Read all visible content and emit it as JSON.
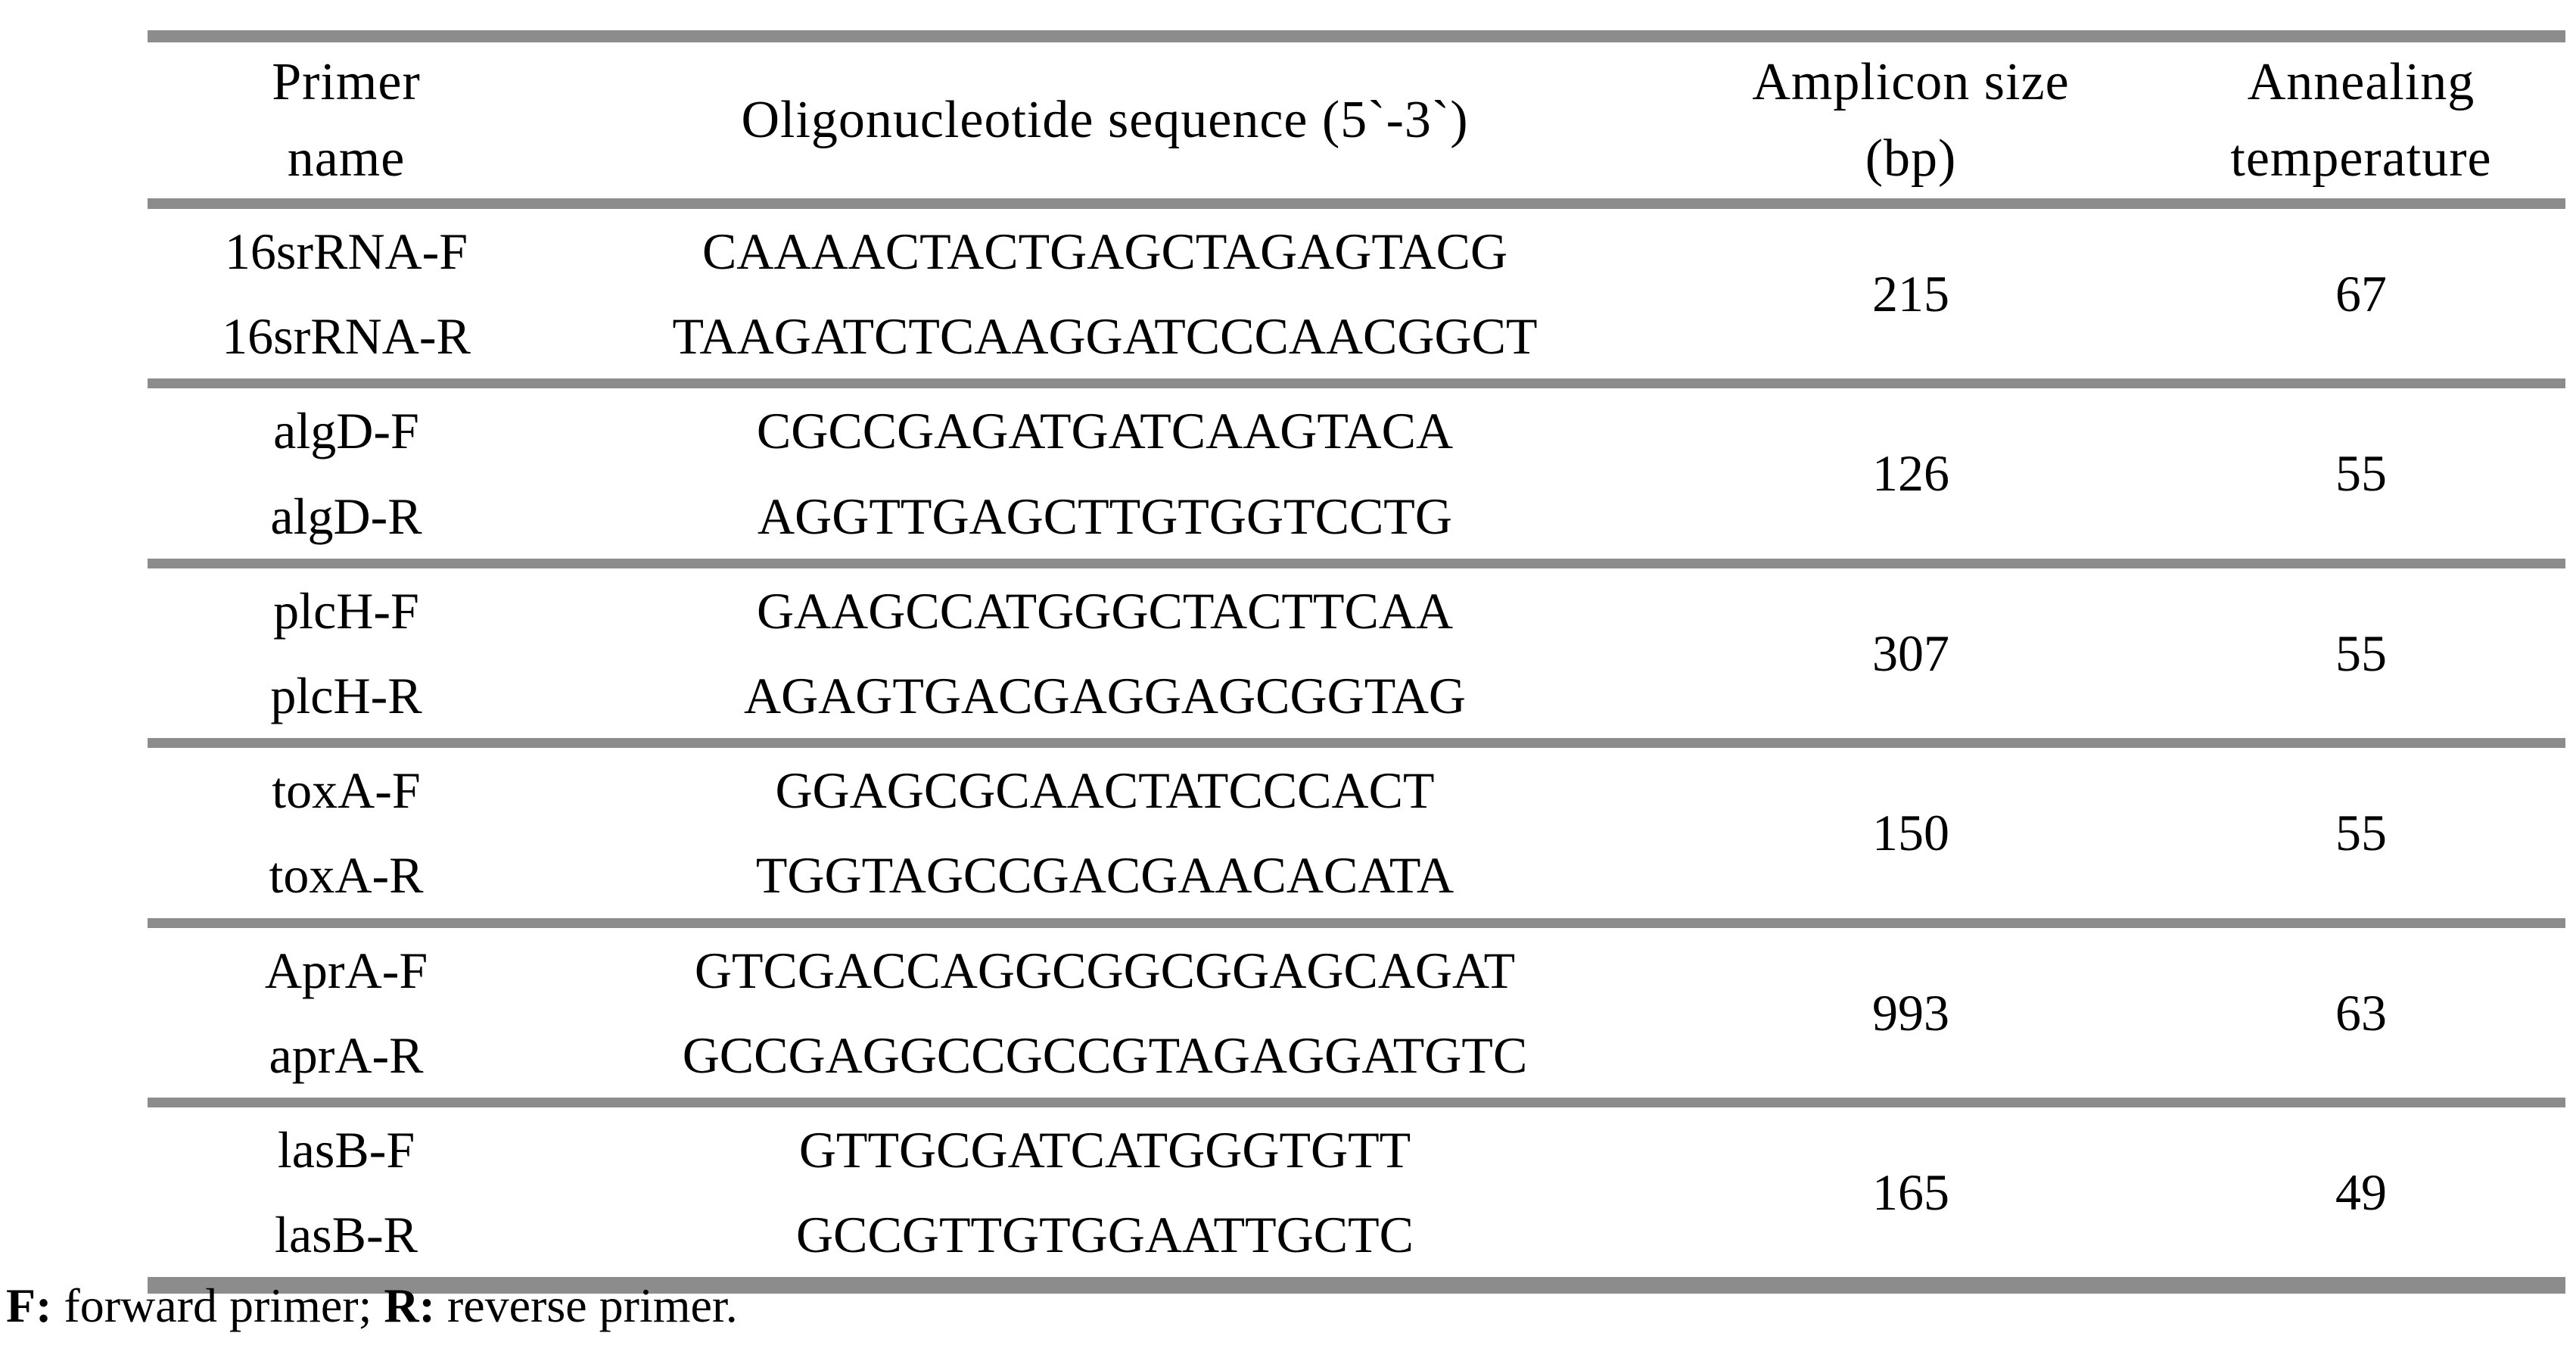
{
  "colors": {
    "border_gray": "#8c8c8c",
    "text": "#000000",
    "background": "#ffffff"
  },
  "header": {
    "primer_name_line1": "Primer",
    "primer_name_line2": "name",
    "sequence": "Oligonucleotide sequence (5`-3`)",
    "amplicon_line1": "Amplicon size",
    "amplicon_line2": "(bp)",
    "annealing_line1": "Annealing",
    "annealing_line2": "temperature"
  },
  "rows": [
    {
      "forward_name": "16srRNA-F",
      "reverse_name": "16srRNA-R",
      "forward_seq": "CAAAACTACTGAGCTAGAGTACG",
      "reverse_seq": "TAAGATCTCAAGGATCCCAACGGCT",
      "amplicon_bp": "215",
      "annealing_temp": "67"
    },
    {
      "forward_name": "algD-F",
      "reverse_name": "algD-R",
      "forward_seq": "CGCCGAGATGATCAAGTACA",
      "reverse_seq": "AGGTTGAGCTTGTGGTCCTG",
      "amplicon_bp": "126",
      "annealing_temp": "55"
    },
    {
      "forward_name": "plcH-F",
      "reverse_name": "plcH-R",
      "forward_seq": "GAAGCCATGGGCTACTTCAA",
      "reverse_seq": "AGAGTGACGAGGAGCGGTAG",
      "amplicon_bp": "307",
      "annealing_temp": "55"
    },
    {
      "forward_name": "toxA-F",
      "reverse_name": "toxA-R",
      "forward_seq": "GGAGCGCAACTATCCCACT",
      "reverse_seq": "TGGTAGCCGACGAACACATA",
      "amplicon_bp": "150",
      "annealing_temp": "55"
    },
    {
      "forward_name": "AprA-F",
      "reverse_name": "aprA-R",
      "forward_seq": "GTCGACCAGGCGGCGGAGCAGAT",
      "reverse_seq": "GCCGAGGCCGCCGTAGAGGATGTC",
      "amplicon_bp": "993",
      "annealing_temp": "63"
    },
    {
      "forward_name": "lasB-F",
      "reverse_name": "lasB-R",
      "forward_seq": "GTTGCGATCATGGGTGTT",
      "reverse_seq": "GCCGTTGTGGAATTGCTC",
      "amplicon_bp": "165",
      "annealing_temp": "49"
    }
  ],
  "footnote": {
    "f_label": "F:",
    "f_text": " forward primer; ",
    "r_label": "R:",
    "r_text": " reverse primer."
  }
}
